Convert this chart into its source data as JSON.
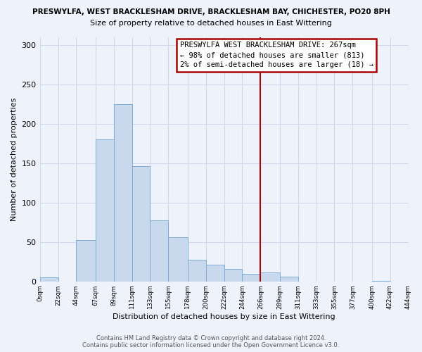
{
  "title": "PRESWYLFA, WEST BRACKLESHAM DRIVE, BRACKLESHAM BAY, CHICHESTER, PO20 8PH",
  "subtitle": "Size of property relative to detached houses in East Wittering",
  "xlabel": "Distribution of detached houses by size in East Wittering",
  "ylabel": "Number of detached properties",
  "bar_color": "#c8d9ee",
  "bar_edge_color": "#7eadd4",
  "background_color": "#eef2fb",
  "grid_color": "#d0d8ea",
  "bin_edges": [
    0,
    22,
    44,
    67,
    89,
    111,
    133,
    155,
    178,
    200,
    222,
    244,
    266,
    289,
    311,
    333,
    355,
    377,
    400,
    422,
    444
  ],
  "bin_labels": [
    "0sqm",
    "22sqm",
    "44sqm",
    "67sqm",
    "89sqm",
    "111sqm",
    "133sqm",
    "155sqm",
    "178sqm",
    "200sqm",
    "222sqm",
    "244sqm",
    "266sqm",
    "289sqm",
    "311sqm",
    "333sqm",
    "355sqm",
    "377sqm",
    "400sqm",
    "422sqm",
    "444sqm"
  ],
  "bar_heights": [
    5,
    0,
    52,
    180,
    225,
    146,
    77,
    56,
    27,
    21,
    16,
    10,
    11,
    6,
    0,
    0,
    0,
    0,
    1,
    0
  ],
  "vline_x": 266,
  "vline_color": "#aa0000",
  "annotation_text": "PRESWYLFA WEST BRACKLESHAM DRIVE: 267sqm\n← 98% of detached houses are smaller (813)\n2% of semi-detached houses are larger (18) →",
  "annotation_box_color": "#ffffff",
  "annotation_box_edge": "#aa0000",
  "ylim": [
    0,
    310
  ],
  "yticks": [
    0,
    50,
    100,
    150,
    200,
    250,
    300
  ],
  "footer_line1": "Contains HM Land Registry data © Crown copyright and database right 2024.",
  "footer_line2": "Contains public sector information licensed under the Open Government Licence v3.0."
}
